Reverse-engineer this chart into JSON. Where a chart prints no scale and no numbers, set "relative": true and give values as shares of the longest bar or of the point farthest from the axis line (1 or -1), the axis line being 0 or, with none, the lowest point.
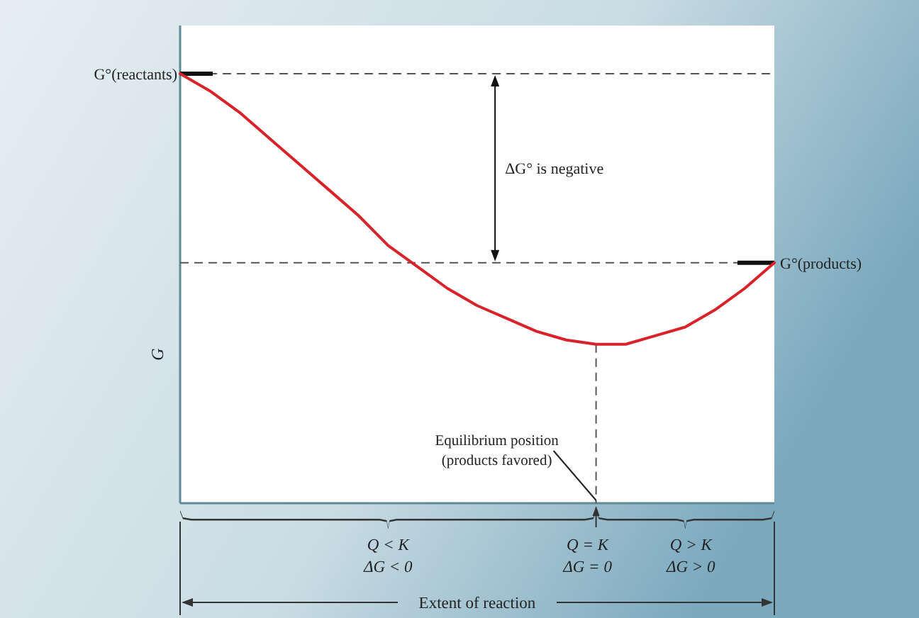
{
  "chart_data": {
    "type": "line",
    "relative": true,
    "ylabel": "G",
    "categories": [
      null,
      null,
      null,
      null,
      null,
      null,
      null,
      null,
      null,
      null,
      null,
      null,
      null,
      null,
      null,
      null,
      null,
      null,
      null,
      null,
      null
    ],
    "marker": "none",
    "line_style": "solid",
    "series": [
      {
        "color": "#d8232a",
        "values": [
          1,
          0.96,
          0.91,
          0.85,
          0.79,
          0.73,
          0.67,
          0.6,
          0.55,
          0.5,
          0.46,
          0.43,
          0.4,
          0.38,
          0.37,
          0.37,
          0.39,
          0.41,
          0.45,
          0.5,
          0.56
        ]
      }
    ],
    "ref_lines": [
      {
        "axis": "y",
        "value": 1,
        "label": "G°(reactants)",
        "color": "#555555",
        "line_style": "dashed"
      },
      {
        "axis": "y",
        "value": 0.56,
        "label": "G°(products)",
        "color": "#555555",
        "line_style": "dashed"
      }
    ],
    "annotations": [
      "ΔG° is negative",
      "Q < K\nΔG < 0",
      "Q = K\nΔG = 0",
      "Q > K\nΔG > 0",
      "Equilibrium position\n(products favored)",
      "Extent of reaction"
    ]
  }
}
